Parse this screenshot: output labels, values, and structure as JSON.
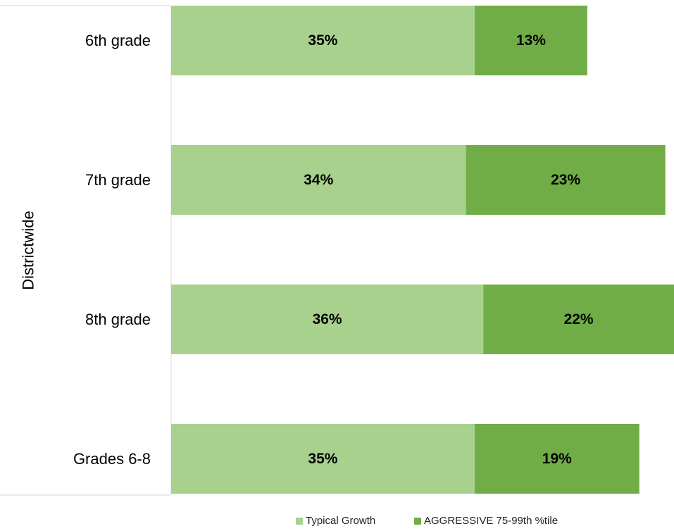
{
  "chart_data": {
    "type": "bar",
    "orientation": "horizontal",
    "stacked": true,
    "title": "",
    "group_label": "Districtwide",
    "categories": [
      "6th grade",
      "7th grade",
      "8th grade",
      "Grades 6-8"
    ],
    "series": [
      {
        "name": "Typical Growth",
        "color": "#a9d18e",
        "values": [
          35,
          34,
          36,
          35
        ],
        "labels": [
          "35%",
          "34%",
          "36%",
          "35%"
        ]
      },
      {
        "name": "AGGRESSIVE 75-99th %tile",
        "color": "#70ad47",
        "values": [
          13,
          23,
          22,
          19
        ],
        "labels": [
          "13%",
          "23%",
          "22%",
          "19%"
        ]
      }
    ],
    "xlim": [
      0,
      58
    ],
    "grid": false,
    "legend_position": "bottom-right"
  }
}
